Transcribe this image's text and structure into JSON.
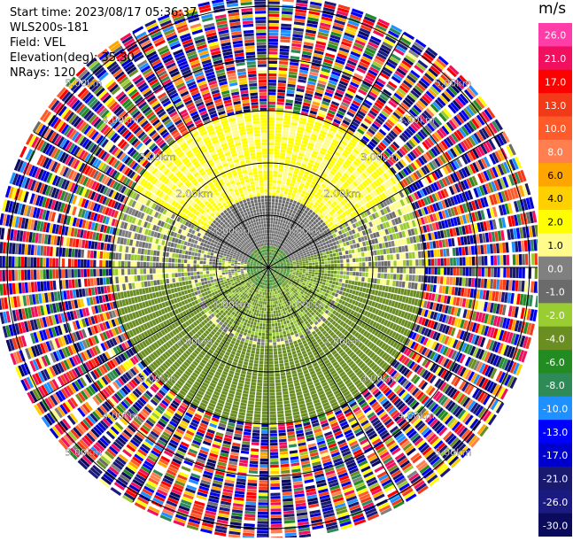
{
  "info": {
    "start_time": "Start time: 2023/08/17 05:36:37",
    "site": "WLS200s-181",
    "field": "Field: VEL",
    "elevation": "Elevation(deg): 35.30",
    "nrays": "NRays: 120"
  },
  "colorbar": {
    "unit": "m/s",
    "bands": [
      {
        "label": "26.0",
        "color": "#ff3da8"
      },
      {
        "label": "21.0",
        "color": "#f0105f"
      },
      {
        "label": "17.0",
        "color": "#ff0000"
      },
      {
        "label": "13.0",
        "color": "#f23a18"
      },
      {
        "label": "10.0",
        "color": "#ff5a2a"
      },
      {
        "label": "8.0",
        "color": "#ff7f50"
      },
      {
        "label": "6.0",
        "color": "#ffa500"
      },
      {
        "label": "4.0",
        "color": "#ffd000"
      },
      {
        "label": "2.0",
        "color": "#ffff00"
      },
      {
        "label": "1.0",
        "color": "#fffc8c"
      },
      {
        "label": "0.0",
        "color": "#808080"
      },
      {
        "label": "-1.0",
        "color": "#6b6b6b"
      },
      {
        "label": "-2.0",
        "color": "#9acd32"
      },
      {
        "label": "-4.0",
        "color": "#6b8e23"
      },
      {
        "label": "-6.0",
        "color": "#228b22"
      },
      {
        "label": "-8.0",
        "color": "#2e8b57"
      },
      {
        "label": "-10.0",
        "color": "#1e90ff"
      },
      {
        "label": "-13.0",
        "color": "#0000ff"
      },
      {
        "label": "-17.0",
        "color": "#0000cd"
      },
      {
        "label": "-21.0",
        "color": "#191970"
      },
      {
        "label": "-26.0",
        "color": "#1a1a80"
      },
      {
        "label": "-30.0",
        "color": "#0b0b5e"
      }
    ]
  },
  "chart_data": {
    "type": "heatmap",
    "projection": "polar",
    "field": "VEL",
    "nrays": 120,
    "range_rings_km": [
      1.0,
      2.0,
      3.0,
      4.0,
      5.0
    ],
    "ring_labels": [
      "1.00km",
      "2.00km",
      "3.00km",
      "4.00km",
      "5.00km"
    ],
    "spokes_deg": [
      0,
      30,
      60,
      90,
      120,
      150,
      180,
      210,
      240,
      270,
      300,
      330
    ],
    "colormap_levels": [
      -30.0,
      -26.0,
      -21.0,
      -17.0,
      -13.0,
      -10.0,
      -8.0,
      -6.0,
      -4.0,
      -2.0,
      -1.0,
      0.0,
      1.0,
      2.0,
      4.0,
      6.0,
      8.0,
      10.0,
      13.0,
      17.0,
      21.0,
      26.0
    ],
    "velocity_pattern": [
      {
        "range_km": [
          0.0,
          0.4
        ],
        "azimuth_deg": [
          0,
          360
        ],
        "value_range": [
          -6.0,
          -2.0
        ]
      },
      {
        "range_km": [
          0.4,
          1.4
        ],
        "azimuth_deg": [
          285,
          435
        ],
        "value_range": [
          -1.0,
          0.0
        ]
      },
      {
        "range_km": [
          0.4,
          1.4
        ],
        "azimuth_deg": [
          75,
          255
        ],
        "value_range": [
          -4.0,
          -1.0
        ]
      },
      {
        "range_km": [
          1.0,
          3.0
        ],
        "azimuth_deg": [
          300,
          420
        ],
        "value_range": [
          1.0,
          4.0
        ]
      },
      {
        "range_km": [
          1.5,
          3.0
        ],
        "azimuth_deg": [
          100,
          260
        ],
        "value_range": [
          -4.0,
          -2.0
        ]
      },
      {
        "range_km": [
          3.0,
          5.5
        ],
        "azimuth_deg": [
          0,
          360
        ],
        "value_range": [
          -30.0,
          26.0
        ],
        "note": "noise"
      }
    ]
  }
}
